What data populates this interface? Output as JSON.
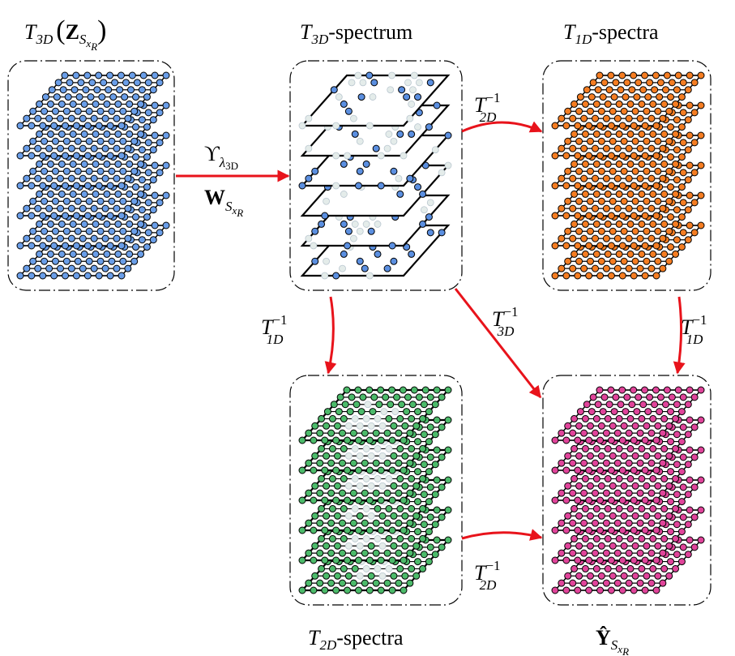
{
  "nodes": [
    {
      "label": [
        "T",
        "3D",
        "(",
        "Z",
        "S",
        "x",
        "R",
        ")"
      ]
    },
    {
      "label": [
        "T",
        "3D",
        "-spectrum"
      ]
    },
    {
      "label": [
        "T",
        "1D",
        "-spectra"
      ]
    },
    {
      "label": [
        "T",
        "2D",
        "-spectra"
      ]
    },
    {
      "label": [
        "Ŷ",
        "S",
        "x",
        "R"
      ]
    }
  ],
  "edges": [
    {
      "label": [
        "ϒ",
        "λ",
        "3D"
      ],
      "label2": [
        "W",
        "S",
        "x",
        "R"
      ]
    },
    {
      "label": [
        "T",
        "−1",
        "2D"
      ]
    },
    {
      "label": [
        "T",
        "−1",
        "1D"
      ]
    },
    {
      "label": [
        "T",
        "−1",
        "3D"
      ]
    },
    {
      "label": [
        "T",
        "−1",
        "1D"
      ]
    },
    {
      "label": [
        "T",
        "−1",
        "2D"
      ]
    }
  ]
}
